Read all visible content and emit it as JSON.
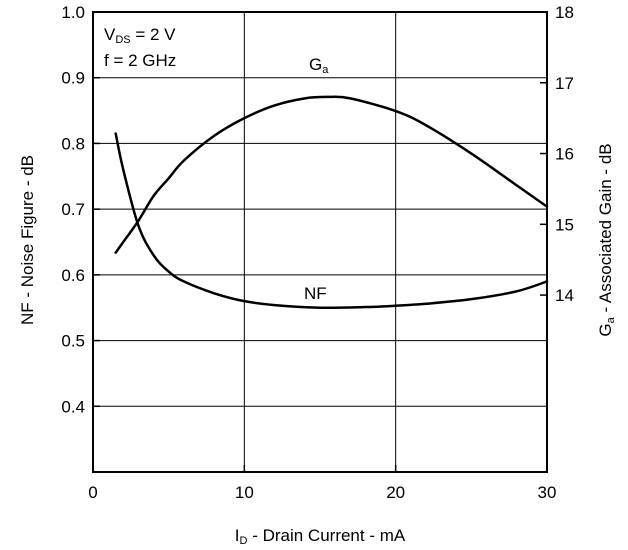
{
  "chart_data": {
    "type": "line",
    "conditions": {
      "line1_main": "V",
      "line1_sub": "DS",
      "line1_rest": " = 2 V",
      "line2": "f = 2 GHz"
    },
    "x_axis": {
      "label_main": "I",
      "label_sub": "D",
      "label_rest": " - Drain Current - mA",
      "range": [
        0,
        30
      ],
      "ticks": [
        0,
        10,
        20,
        30
      ],
      "tick_labels": [
        "0",
        "10",
        "20",
        "30"
      ]
    },
    "y_left": {
      "label": "NF - Noise Figure - dB",
      "range": [
        0.3,
        1.0
      ],
      "ticks": [
        0.3,
        0.4,
        0.5,
        0.6,
        0.7,
        0.8,
        0.9,
        1.0
      ],
      "tick_labels": [
        "",
        "0.4",
        "0.5",
        "0.6",
        "0.7",
        "0.8",
        "0.9",
        "1.0"
      ]
    },
    "y_right": {
      "label_main": "G",
      "label_sub": "a",
      "label_rest": " - Associated Gain - dB",
      "range": [
        11.5,
        18
      ],
      "ticks": [
        14,
        15,
        16,
        17,
        18
      ],
      "tick_labels": [
        "14",
        "15",
        "16",
        "17",
        "18"
      ]
    },
    "grid": true,
    "series": [
      {
        "name": "NF",
        "axis": "left",
        "x": [
          1.5,
          2,
          3,
          4,
          5,
          6,
          8,
          10,
          12,
          15,
          18,
          20,
          22,
          25,
          28,
          30
        ],
        "y": [
          0.815,
          0.76,
          0.675,
          0.63,
          0.605,
          0.59,
          0.572,
          0.56,
          0.554,
          0.55,
          0.551,
          0.553,
          0.556,
          0.563,
          0.575,
          0.59
        ]
      },
      {
        "name_main": "G",
        "name_sub": "a",
        "axis": "right",
        "x": [
          1.5,
          2,
          3,
          4,
          5,
          6,
          8,
          10,
          12,
          14,
          15.5,
          17,
          20,
          22,
          25,
          28,
          30
        ],
        "y": [
          14.6,
          14.75,
          15.05,
          15.4,
          15.65,
          15.9,
          16.25,
          16.5,
          16.68,
          16.78,
          16.8,
          16.78,
          16.6,
          16.4,
          16.0,
          15.55,
          15.25
        ]
      }
    ]
  }
}
